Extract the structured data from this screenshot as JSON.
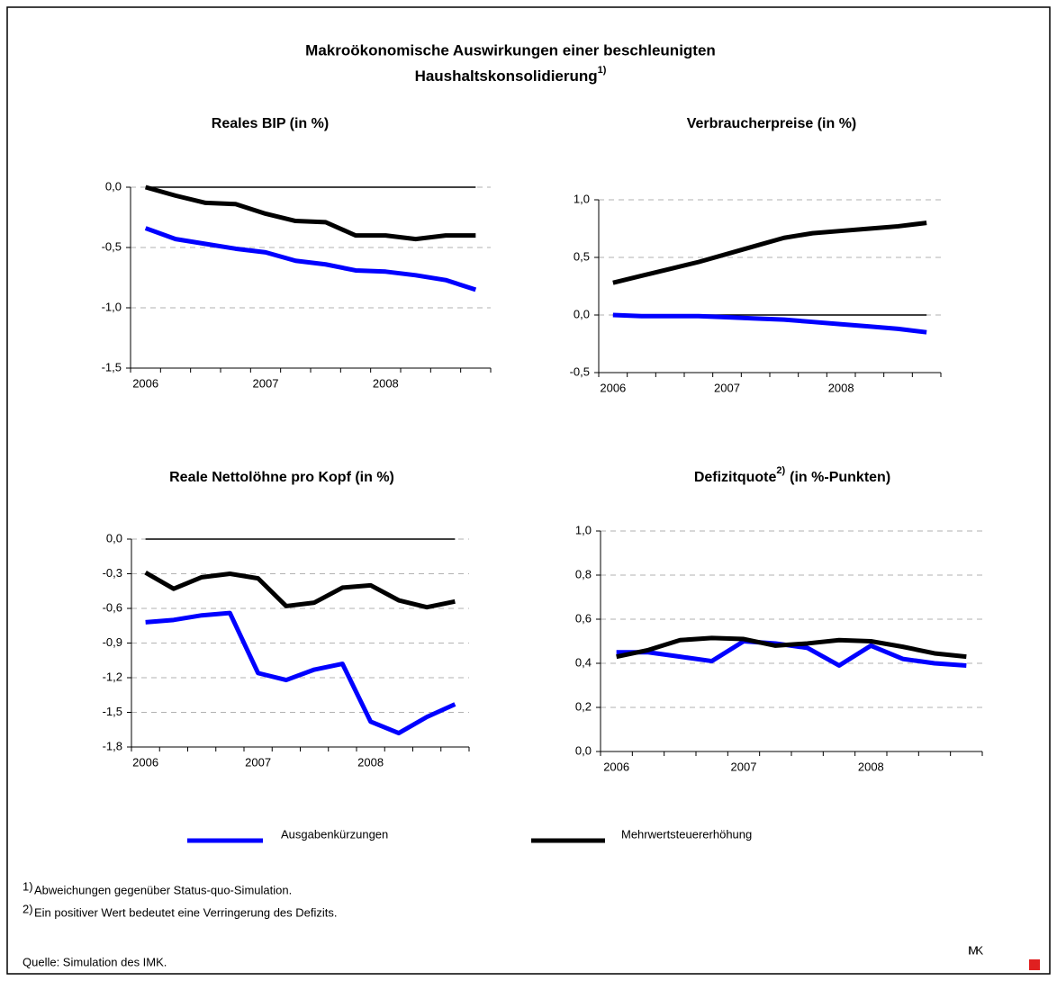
{
  "title": [
    "Makroökonomische Auswirkungen einer beschleunigten",
    "Haushaltskonsolidierung"
  ],
  "title_sup": "1)",
  "legend": [
    {
      "name": "Ausgabenkürzungen",
      "color": "#0000ff"
    },
    {
      "name": "Mehrwertsteuererhöhung",
      "color": "#000000"
    }
  ],
  "chart_data": [
    {
      "type": "line",
      "title": "Reales BIP (in %)",
      "categories": [
        "2006",
        null,
        null,
        null,
        "2007",
        null,
        null,
        null,
        "2008",
        null,
        null,
        null
      ],
      "series": [
        {
          "values": [
            -0.34,
            -0.43,
            -0.47,
            -0.51,
            -0.54,
            -0.61,
            -0.64,
            -0.69,
            -0.7,
            -0.73,
            -0.77,
            -0.85
          ]
        },
        {
          "values": [
            0,
            -0.07,
            -0.13,
            -0.14,
            -0.22,
            -0.28,
            -0.29,
            -0.4,
            -0.4,
            -0.43,
            -0.4,
            -0.4
          ]
        }
      ],
      "ylim": [
        -1.5,
        0
      ],
      "yticks": [
        {
          "value": 0,
          "label": "0,0"
        },
        {
          "value": -0.5,
          "label": "-0,5"
        },
        {
          "value": -1,
          "label": "-1,0"
        },
        {
          "value": -1.5,
          "label": "-1,5"
        }
      ],
      "grid": true
    },
    {
      "type": "line",
      "title": "Verbraucherpreise (in %)",
      "categories": [
        "2006",
        null,
        null,
        null,
        "2007",
        null,
        null,
        null,
        "2008",
        null,
        null,
        null
      ],
      "series": [
        {
          "values": [
            0,
            -0.01,
            -0.01,
            -0.01,
            -0.02,
            -0.03,
            -0.04,
            -0.06,
            -0.08,
            -0.1,
            -0.12,
            -0.15
          ]
        },
        {
          "values": [
            0.28,
            0.34,
            0.4,
            0.46,
            0.53,
            0.6,
            0.67,
            0.71,
            0.73,
            0.75,
            0.77,
            0.8
          ]
        }
      ],
      "ylim": [
        -0.5,
        1
      ],
      "yticks": [
        {
          "value": 1,
          "label": "1,0"
        },
        {
          "value": 0.5,
          "label": "0,5"
        },
        {
          "value": 0,
          "label": "0,0"
        },
        {
          "value": -0.5,
          "label": "-0,5"
        }
      ],
      "grid": true
    },
    {
      "type": "line",
      "title": "Reale Nettolöhne pro Kopf (in %)",
      "categories": [
        "2006",
        null,
        null,
        null,
        "2007",
        null,
        null,
        null,
        "2008",
        null,
        null,
        null
      ],
      "series": [
        {
          "values": [
            -0.72,
            -0.7,
            -0.66,
            -0.64,
            -1.16,
            -1.22,
            -1.13,
            -1.08,
            -1.58,
            -1.68,
            -1.54,
            -1.43
          ]
        },
        {
          "values": [
            -0.29,
            -0.43,
            -0.33,
            -0.3,
            -0.34,
            -0.58,
            -0.55,
            -0.42,
            -0.4,
            -0.53,
            -0.59,
            -0.54
          ]
        }
      ],
      "ylim": [
        -1.8,
        0
      ],
      "yticks": [
        {
          "value": 0,
          "label": "0,0"
        },
        {
          "value": -0.3,
          "label": "-0,3"
        },
        {
          "value": -0.6,
          "label": "-0,6"
        },
        {
          "value": -0.9,
          "label": "-0,9"
        },
        {
          "value": -1.2,
          "label": "-1,2"
        },
        {
          "value": -1.5,
          "label": "-1,5"
        },
        {
          "value": -1.8,
          "label": "-1,8"
        }
      ],
      "grid": true
    },
    {
      "type": "line",
      "title": "Defizitquote",
      "title_sup": "2)",
      "title_rest": "(in %-Punkten)",
      "categories": [
        "2006",
        null,
        null,
        null,
        "2007",
        null,
        null,
        null,
        "2008",
        null,
        null,
        null
      ],
      "series": [
        {
          "values": [
            0.45,
            0.45,
            0.43,
            0.41,
            0.5,
            0.49,
            0.47,
            0.39,
            0.48,
            0.42,
            0.4,
            0.39
          ]
        },
        {
          "values": [
            0.43,
            0.46,
            0.505,
            0.515,
            0.51,
            0.48,
            0.49,
            0.505,
            0.5,
            0.475,
            0.445,
            0.43
          ]
        }
      ],
      "ylim": [
        0,
        1
      ],
      "yticks": [
        {
          "value": 0,
          "label": "0,0"
        },
        {
          "value": 0.2,
          "label": "0,2"
        },
        {
          "value": 0.4,
          "label": "0,4"
        },
        {
          "value": 0.6,
          "label": "0,6"
        },
        {
          "value": 0.8,
          "label": "0,8"
        },
        {
          "value": 1,
          "label": "1,0"
        }
      ],
      "grid": true
    }
  ],
  "footnotes": [
    {
      "mark": "1)",
      "text": "Abweichungen gegenüber Status-quo-Simulation."
    },
    {
      "mark": "2)",
      "text": "Ein positiver Wert bedeutet eine Verringerung des Defizits."
    }
  ],
  "source": "Quelle: Simulation des IMK.",
  "logo": "IMK"
}
